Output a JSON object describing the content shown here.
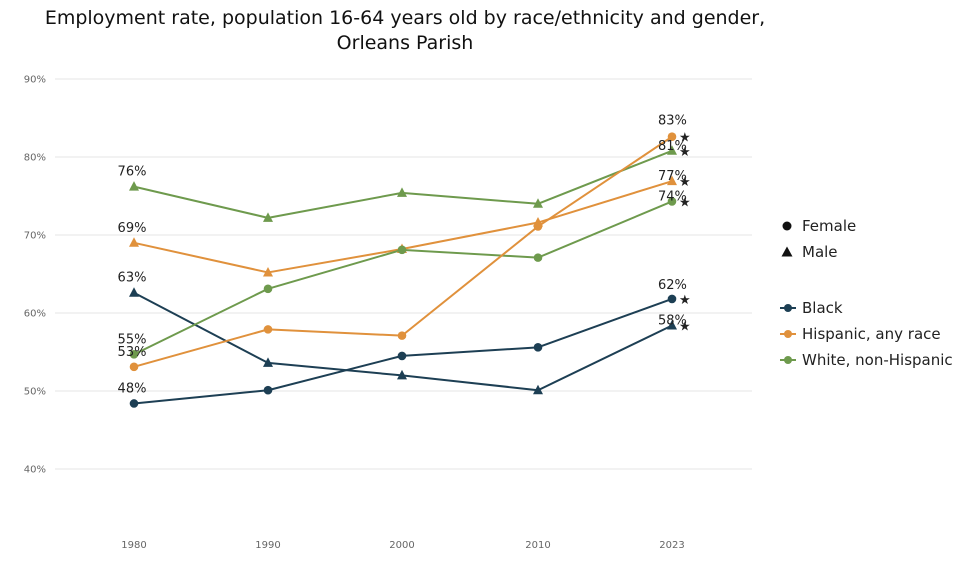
{
  "title_line1": "Employment rate, population 16-64 years old by race/ethnicity and gender,",
  "title_line2": "Orleans Parish",
  "legend_shape": {
    "items": [
      {
        "label": "Female",
        "shape": "circle"
      },
      {
        "label": "Male",
        "shape": "triangle"
      }
    ]
  },
  "legend_race": {
    "items": [
      {
        "label": "Black",
        "color": "#1d3f54"
      },
      {
        "label": "Hispanic, any race",
        "color": "#e0913c"
      },
      {
        "label": "White, non-Hispanic",
        "color": "#6e9a4d"
      }
    ]
  },
  "chart_data": {
    "type": "line",
    "title": "Employment rate, population 16-64 years old by race/ethnicity and gender, Orleans Parish",
    "x": [
      "1980",
      "1990",
      "2000",
      "2010",
      "2023"
    ],
    "ylim": [
      40,
      90
    ],
    "yticks": [
      40,
      50,
      60,
      70,
      80,
      90
    ],
    "ytick_labels": [
      "40%",
      "50%",
      "60%",
      "70%",
      "80%",
      "90%"
    ],
    "grid": true,
    "legend_position": "right",
    "star_marker": "★",
    "series": [
      {
        "race": "White, non-Hispanic",
        "gender": "Male",
        "shape": "triangle",
        "color": "#6e9a4d",
        "values": [
          76.2,
          72.2,
          75.4,
          74,
          80.8
        ],
        "labels": [
          {
            "index": 0,
            "text": "76%"
          },
          {
            "index": 4,
            "text": "81%"
          }
        ]
      },
      {
        "race": "Hispanic, any race",
        "gender": "Male",
        "shape": "triangle",
        "color": "#e0913c",
        "values": [
          69,
          65.2,
          68.2,
          71.6,
          76.9
        ],
        "labels": [
          {
            "index": 0,
            "text": "69%"
          },
          {
            "index": 4,
            "text": "77%"
          }
        ]
      },
      {
        "race": "Black",
        "gender": "Male",
        "shape": "triangle",
        "color": "#1d3f54",
        "values": [
          62.6,
          53.6,
          52,
          50.1,
          58.4
        ],
        "labels": [
          {
            "index": 0,
            "text": "63%"
          },
          {
            "index": 4,
            "text": "58%"
          }
        ]
      },
      {
        "race": "White, non-Hispanic",
        "gender": "Female",
        "shape": "circle",
        "color": "#6e9a4d",
        "values": [
          54.7,
          63.1,
          68.1,
          67.1,
          74.3
        ],
        "labels": [
          {
            "index": 0,
            "text": "55%"
          },
          {
            "index": 4,
            "text": "74%"
          }
        ]
      },
      {
        "race": "Hispanic, any race",
        "gender": "Female",
        "shape": "circle",
        "color": "#e0913c",
        "values": [
          53.1,
          57.9,
          57.1,
          71.1,
          82.6
        ],
        "labels": [
          {
            "index": 0,
            "text": "53%"
          },
          {
            "index": 4,
            "text": "83%"
          }
        ]
      },
      {
        "race": "Black",
        "gender": "Female",
        "shape": "circle",
        "color": "#1d3f54",
        "values": [
          48.4,
          50.1,
          54.5,
          55.6,
          61.8
        ],
        "labels": [
          {
            "index": 0,
            "text": "48%"
          },
          {
            "index": 4,
            "text": "62%"
          }
        ]
      }
    ]
  }
}
